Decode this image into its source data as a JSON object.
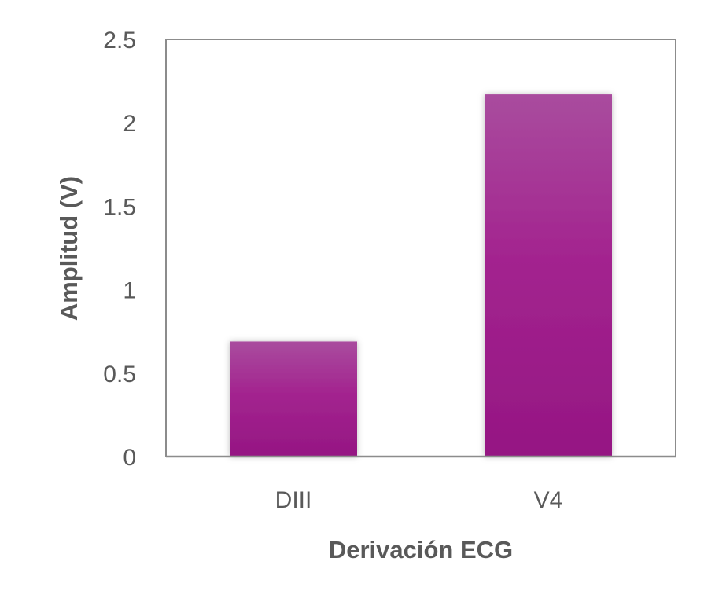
{
  "chart_data": {
    "type": "bar",
    "categories": [
      "DIII",
      "V4"
    ],
    "values": [
      0.69,
      2.17
    ],
    "xlabel": "Derivación ECG",
    "ylabel": "Amplitud (V)",
    "ylim": [
      0,
      2.5
    ],
    "yticks": [
      0,
      0.5,
      1,
      1.5,
      2,
      2.5
    ],
    "ytick_labels": [
      "0",
      "0.5",
      "1",
      "1.5",
      "2",
      "2.5"
    ],
    "grid": false,
    "legend": "none",
    "colors": {
      "bar_top": "#a94c9e",
      "bar_mid": "#a3248f",
      "bar_bottom": "#951683",
      "axis": "#8c8c8c",
      "text": "#595959"
    }
  }
}
